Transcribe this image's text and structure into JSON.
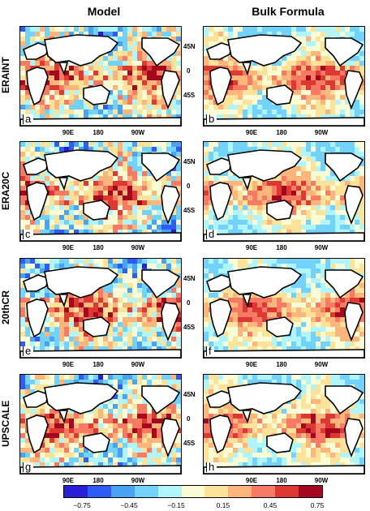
{
  "columns": [
    "Model",
    "Bulk Formula"
  ],
  "rows": [
    "ERAINT",
    "ERA20C",
    "20thCR",
    "UPSCALE"
  ],
  "panel_letters": [
    "a",
    "b",
    "c",
    "d",
    "e",
    "f",
    "g",
    "h"
  ],
  "x_ticks": [
    "90E",
    "180",
    "90W"
  ],
  "y_ticks": [
    "45N",
    "0",
    "45S"
  ],
  "colorbar": {
    "colors": [
      "#2a1fd9",
      "#2f5cf5",
      "#4aa2f5",
      "#73d2fa",
      "#b0f5fc",
      "#fafcd6",
      "#fde29a",
      "#fcb57a",
      "#f77b64",
      "#dd3831",
      "#a3081e"
    ],
    "tick_labels": [
      "−0.75",
      "−0.45",
      "−0.15",
      "0.15",
      "0.45",
      "0.75"
    ]
  }
}
